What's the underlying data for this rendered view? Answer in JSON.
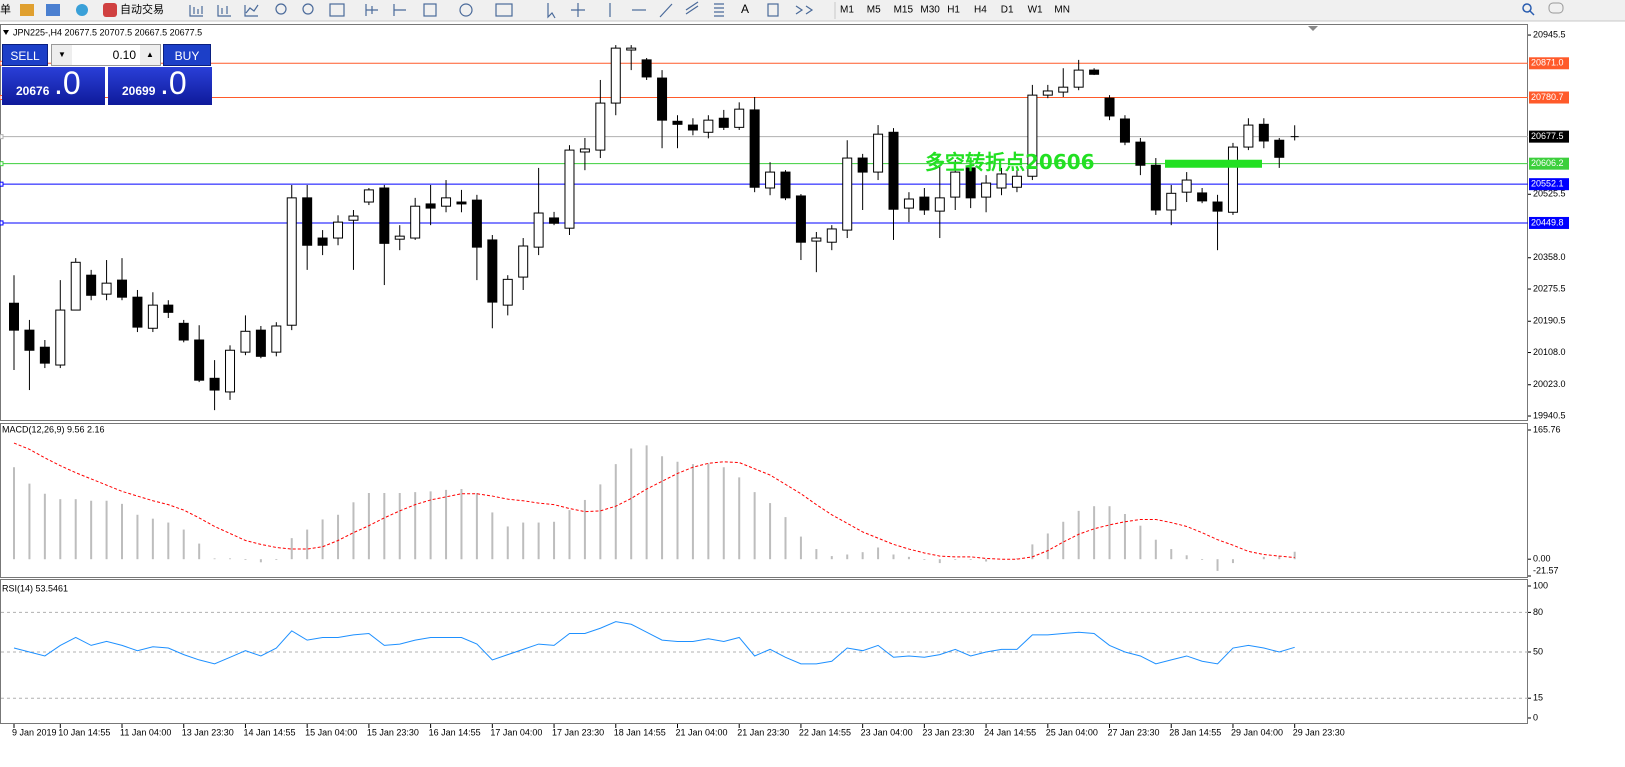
{
  "toolbar": {
    "menu": "单",
    "auto_trade": "自动交易",
    "timeframes": [
      "M1",
      "M5",
      "M15",
      "M30",
      "H1",
      "H4",
      "D1",
      "W1",
      "MN"
    ]
  },
  "trade_panel": {
    "sell": "SELL",
    "lot": "0.10",
    "buy": "BUY",
    "bid_big": "20676",
    "bid_small": ".0",
    "ask_big": "20699",
    "ask_small": ".0"
  },
  "chart_data": [
    {
      "type": "candlestick",
      "title": "JPN225-,H4  20677.5 20707.5 20667.5 20677.5",
      "categories": [
        "9 Jan 2019",
        null,
        null,
        "10 Jan 14:55",
        null,
        null,
        null,
        "11 Jan 04:00",
        null,
        null,
        null,
        "13 Jan 23:30",
        null,
        null,
        null,
        "14 Jan 14:55",
        null,
        null,
        null,
        "15 Jan 04:00",
        null,
        null,
        null,
        "15 Jan 23:30",
        null,
        null,
        null,
        "16 Jan 14:55",
        null,
        null,
        null,
        "17 Jan 04:00",
        null,
        null,
        null,
        "17 Jan 23:30",
        null,
        null,
        null,
        "18 Jan 14:55",
        null,
        null,
        null,
        "21 Jan 04:00",
        null,
        null,
        null,
        "21 Jan 23:30",
        null,
        null,
        null,
        "22 Jan 14:55",
        null,
        null,
        null,
        "23 Jan 04:00",
        null,
        null,
        null,
        "23 Jan 23:30",
        null,
        null,
        null,
        "24 Jan 14:55",
        null,
        null,
        null,
        "25 Jan 04:00",
        null,
        null,
        null,
        "27 Jan 23:30",
        null,
        null,
        null,
        "28 Jan 14:55",
        null,
        null,
        null,
        "29 Jan 04:00",
        null,
        null,
        null,
        "29 Jan 23:30"
      ],
      "open": [
        20238,
        20167,
        20122,
        20075,
        20220,
        20312,
        20262,
        20299,
        20254,
        20172,
        20233,
        20185,
        20141,
        20040,
        20004,
        20109,
        20167,
        20109,
        20180,
        20516,
        20410,
        20410,
        20457,
        20505,
        20542,
        20407,
        20410,
        20500,
        20494,
        20505,
        20510,
        20405,
        20233,
        20307,
        20386,
        20463,
        20436,
        20637,
        20642,
        20766,
        20906,
        20880,
        20832,
        20718,
        20708,
        20689,
        20726,
        20702,
        20748,
        20542,
        20584,
        20521,
        20402,
        20399,
        20431,
        20621,
        20584,
        20689,
        20489,
        20518,
        20481,
        20518,
        20595,
        20518,
        20542,
        20544,
        20573,
        20787,
        20795,
        20808,
        20853,
        20779,
        20724,
        20663,
        20602,
        20484,
        20531,
        20529,
        20505,
        20478,
        20650,
        20710,
        20668,
        20677.5
      ],
      "high": [
        20312,
        20194,
        20141,
        20299,
        20357,
        20326,
        20352,
        20357,
        20273,
        20267,
        20246,
        20194,
        20180,
        20088,
        20127,
        20206,
        20178,
        20188,
        20550,
        20550,
        20431,
        20470,
        20484,
        20542,
        20550,
        20444,
        20516,
        20550,
        20563,
        20537,
        20524,
        20418,
        20312,
        20410,
        20595,
        20479,
        20655,
        20674,
        20827,
        20919,
        20919,
        20885,
        20853,
        20734,
        20726,
        20734,
        20748,
        20768,
        20782,
        20610,
        20589,
        20526,
        20426,
        20444,
        20668,
        20632,
        20708,
        20700,
        20531,
        20542,
        20603,
        20616,
        20616,
        20576,
        20595,
        20589,
        20814,
        20814,
        20858,
        20880,
        20858,
        20787,
        20734,
        20674,
        20621,
        20550,
        20584,
        20542,
        20524,
        20661,
        20726,
        20726,
        20674,
        20707.5
      ],
      "low": [
        20062,
        20009,
        20067,
        20067,
        20220,
        20246,
        20246,
        20246,
        20162,
        20162,
        20199,
        20135,
        20030,
        19956,
        19983,
        20101,
        20093,
        20098,
        20167,
        20326,
        20365,
        20391,
        20326,
        20497,
        20286,
        20378,
        20405,
        20444,
        20478,
        20478,
        20299,
        20172,
        20206,
        20273,
        20365,
        20444,
        20418,
        20589,
        20621,
        20734,
        20853,
        20827,
        20647,
        20647,
        20681,
        20673,
        20695,
        20695,
        20531,
        20523,
        20510,
        20352,
        20320,
        20378,
        20410,
        20484,
        20563,
        20405,
        20452,
        20471,
        20410,
        20484,
        20489,
        20478,
        20523,
        20531,
        20563,
        20779,
        20782,
        20800,
        20840,
        20721,
        20655,
        20576,
        20471,
        20444,
        20505,
        20502,
        20378,
        20471,
        20642,
        20647,
        20595,
        20667.5
      ],
      "close": [
        20167,
        20114,
        20080,
        20220,
        20346,
        20259,
        20291,
        20254,
        20175,
        20233,
        20214,
        20141,
        20035,
        20009,
        20114,
        20164,
        20098,
        20178,
        20516,
        20391,
        20391,
        20452,
        20468,
        20537,
        20396,
        20415,
        20494,
        20489,
        20516,
        20500,
        20386,
        20241,
        20301,
        20389,
        20476,
        20449,
        20642,
        20645,
        20766,
        20911,
        20911,
        20835,
        20721,
        20710,
        20695,
        20721,
        20702,
        20750,
        20544,
        20584,
        20516,
        20399,
        20410,
        20434,
        20621,
        20584,
        20684,
        20486,
        20513,
        20484,
        20516,
        20584,
        20516,
        20555,
        20579,
        20573,
        20787,
        20798,
        20808,
        20853,
        20842,
        20732,
        20663,
        20602,
        20484,
        20528,
        20563,
        20508,
        20481,
        20650,
        20708,
        20666,
        20623,
        20677.5
      ],
      "up_color": "#ffffff",
      "down_color": "#000000",
      "ylim": [
        19930,
        20972
      ],
      "yticks": [
        20945.5,
        20525.5,
        {
          "value": 20358,
          "label": "20358.0"
        },
        20275.5,
        20190.5,
        {
          "value": 20108,
          "label": "20108.0"
        },
        {
          "value": 20023,
          "label": "20023.0"
        },
        19940.5
      ],
      "levels": [
        {
          "value": 20871,
          "label": "20871.0",
          "color": "#ff5a2a"
        },
        {
          "value": 20780.7,
          "color": "#ff5a2a"
        },
        {
          "value": 20677.5,
          "color": "#b0b0b0",
          "label_color": "#000000"
        },
        {
          "value": 20606.2,
          "color": "#3ccf3c"
        },
        {
          "value": 20552.1,
          "color": "#0000ff"
        },
        {
          "value": 20449.8,
          "color": "#0000ff"
        }
      ],
      "annotation": {
        "text": "多空转折点20606",
        "value": 20606,
        "color": "#22e022"
      }
    },
    {
      "type": "macd",
      "title": "MACD(12,26,9) 9.56 2.16",
      "histogram": {
        "color": "#bdbdbd",
        "values": [
          118,
          97,
          84,
          77,
          77,
          75,
          75,
          71,
          57,
          52,
          47,
          38,
          20,
          1,
          1,
          -1,
          -4,
          -1,
          27,
          38,
          51,
          57,
          73,
          85,
          85,
          85,
          86,
          87,
          89,
          90,
          85,
          60,
          42,
          47,
          47,
          48,
          63,
          76,
          96,
          122,
          142,
          146,
          132,
          125,
          122,
          123,
          118,
          105,
          86,
          72,
          54,
          29,
          13,
          4,
          6,
          9,
          15,
          6,
          3,
          -1,
          -5,
          -1,
          -1,
          -3,
          0,
          1,
          19,
          33,
          48,
          62,
          68,
          68,
          58,
          43,
          25,
          13,
          5,
          -1,
          -15,
          -5,
          0,
          3,
          4,
          9.56
        ]
      },
      "signal": {
        "color": "#ff0000",
        "values": [
          149,
          141,
          130,
          120,
          111,
          103,
          95,
          87,
          81,
          75,
          70,
          63,
          53,
          42,
          33,
          24,
          19,
          15,
          13,
          13,
          16,
          24,
          34,
          43,
          53,
          62,
          70,
          76,
          80,
          84,
          84,
          81,
          77,
          75,
          72,
          70,
          65,
          61,
          62,
          68,
          78,
          90,
          100,
          110,
          118,
          123,
          125,
          124,
          116,
          108,
          96,
          84,
          70,
          57,
          46,
          35,
          27,
          19,
          13,
          8,
          4,
          3,
          3,
          1,
          0,
          0,
          3,
          11,
          22,
          32,
          39,
          44,
          48,
          51,
          51,
          47,
          42,
          34,
          25,
          18,
          10,
          6,
          4,
          2.16
        ]
      },
      "ylim": [
        -21.57,
        165.76
      ],
      "yticks": [
        165.76,
        {
          "value": 0,
          "label": "0.00"
        },
        -21.57
      ]
    },
    {
      "type": "line",
      "title": "RSI(14) 53.5461",
      "color": "#1e90ff",
      "values": [
        53,
        50,
        47,
        55,
        61,
        55,
        58,
        55,
        51,
        54,
        53,
        48,
        44,
        41,
        46,
        51,
        47,
        53,
        66,
        59,
        61,
        61,
        63,
        64,
        55,
        56,
        59,
        61,
        61,
        61,
        56,
        44,
        48,
        52,
        56,
        55,
        64,
        64,
        68,
        73,
        71,
        65,
        59,
        58,
        58,
        60,
        58,
        61,
        47,
        52,
        46,
        41,
        41,
        43,
        53,
        51,
        55,
        46,
        47,
        46,
        48,
        52,
        47,
        50,
        52,
        52,
        63,
        63,
        64,
        65,
        64,
        55,
        50,
        47,
        41,
        44,
        47,
        43,
        41,
        53,
        55,
        53,
        50,
        53.5461
      ],
      "ylim": [
        0,
        100
      ],
      "yticks": [
        100,
        80,
        50,
        15,
        0
      ],
      "levels": [
        80,
        50,
        15
      ]
    }
  ]
}
